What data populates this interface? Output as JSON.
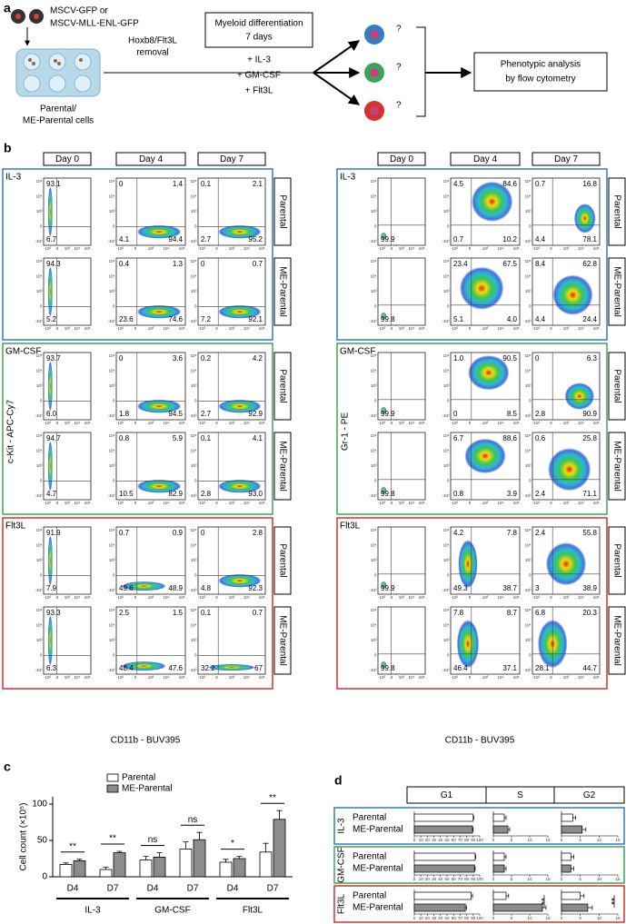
{
  "panel_a": {
    "label": "a",
    "vectors": [
      "MSCV-GFP or",
      "MSCV-MLL-ENL-GFP"
    ],
    "cells": [
      "Parental/",
      "ME-Parental cells"
    ],
    "step": [
      "Hoxb8/Flt3L",
      "removal"
    ],
    "box": [
      "Myeloid differentiation",
      "7 days"
    ],
    "conditions": [
      {
        "text": "+ IL-3",
        "color": "#2f7fc1"
      },
      {
        "text": "+ GM-CSF",
        "color": "#3aa655"
      },
      {
        "text": "+ Flt3L",
        "color": "#d9302c"
      }
    ],
    "outcome": "?",
    "analysis": [
      "Phenotypic analysis",
      "by flow cytometry"
    ]
  },
  "panel_b": {
    "label": "b",
    "days": [
      "Day 0",
      "Day 4",
      "Day 7"
    ],
    "rows": [
      "Parental",
      "ME-Parental"
    ],
    "axis_ticks": [
      "-10³",
      "0",
      "10³",
      "10⁴",
      "10⁵"
    ],
    "x_label": "CD11b - BUV395",
    "blocks": [
      {
        "y_label": "c-Kit - APC-Cy7",
        "conditions": [
          {
            "name": "IL-3",
            "color": "#2f7fc1",
            "plots": [
              [
                [
                  "93.1",
                  "6.7"
                ],
                [
                  "0",
                  "1.4",
                  "4.1",
                  "94.4"
                ],
                [
                  "0.1",
                  "2.1",
                  "2.7",
                  "95.2"
                ]
              ],
              [
                [
                  "94.3",
                  "5.2"
                ],
                [
                  "0.4",
                  "1.3",
                  "23.6",
                  "74.6"
                ],
                [
                  "0",
                  "0.7",
                  "7.2",
                  "92.1"
                ]
              ]
            ]
          },
          {
            "name": "GM-CSF",
            "color": "#3aa655",
            "plots": [
              [
                [
                  "93.7",
                  "6.0"
                ],
                [
                  "0",
                  "3.6",
                  "1.8",
                  "94.5"
                ],
                [
                  "0.2",
                  "4.2",
                  "2.7",
                  "92.9"
                ]
              ],
              [
                [
                  "94.7",
                  "4.7"
                ],
                [
                  "0.8",
                  "5.9",
                  "10.5",
                  "82.9"
                ],
                [
                  "0.1",
                  "4.1",
                  "2.8",
                  "93.0"
                ]
              ]
            ]
          },
          {
            "name": "Flt3L",
            "color": "#d9302c",
            "plots": [
              [
                [
                  "91.9",
                  "7.9"
                ],
                [
                  "0.7",
                  "0.9",
                  "49.6",
                  "48.9"
                ],
                [
                  "0",
                  "2.8",
                  "4.8",
                  "92.3"
                ]
              ],
              [
                [
                  "93.3",
                  "6.3"
                ],
                [
                  "2.5",
                  "1.5",
                  "48.4",
                  "47.6"
                ],
                [
                  "0.1",
                  "0.7",
                  "32.2",
                  "67"
                ]
              ]
            ]
          }
        ]
      },
      {
        "y_label": "Gr-1 - PE",
        "conditions": [
          {
            "name": "IL-3",
            "color": "#2f7fc1",
            "plots": [
              [
                [
                  "99.9"
                ],
                [
                  "4.5",
                  "84.6",
                  "0.7",
                  "10.2"
                ],
                [
                  "0.7",
                  "16.8",
                  "4.4",
                  "78.1"
                ]
              ],
              [
                [
                  "99.8"
                ],
                [
                  "23.4",
                  "67.5",
                  "5.1",
                  "4.0"
                ],
                [
                  "8.4",
                  "62.8",
                  "4.4",
                  "24.4"
                ]
              ]
            ]
          },
          {
            "name": "GM-CSF",
            "color": "#3aa655",
            "plots": [
              [
                [
                  "99.9"
                ],
                [
                  "1.0",
                  "90.5",
                  "0",
                  "8.5"
                ],
                [
                  "0",
                  "6.3",
                  "2.8",
                  "90.9"
                ]
              ],
              [
                [
                  "99.8"
                ],
                [
                  "6.7",
                  "88.6",
                  "0.8",
                  "3.9"
                ],
                [
                  "0.6",
                  "25.8",
                  "2.4",
                  "71.1"
                ]
              ]
            ]
          },
          {
            "name": "Flt3L",
            "color": "#d9302c",
            "plots": [
              [
                [
                  "99.9"
                ],
                [
                  "4.2",
                  "7.8",
                  "49.3",
                  "38.7"
                ],
                [
                  "2.4",
                  "55.8",
                  "3",
                  "38.9"
                ]
              ],
              [
                [
                  "99.8"
                ],
                [
                  "7.8",
                  "8.7",
                  "46.4",
                  "37.1"
                ],
                [
                  "6.8",
                  "20.3",
                  "28.1",
                  "44.7"
                ]
              ]
            ]
          }
        ]
      }
    ]
  },
  "chart_data": [
    {
      "type": "bar",
      "panel": "c",
      "y_label": "Cell count (×10⁵)",
      "ylim": [
        0,
        110
      ],
      "yticks": [
        0,
        50,
        100
      ],
      "categories": [
        "D4",
        "D7",
        "D4",
        "D7",
        "D4",
        "D7"
      ],
      "groups": [
        "IL-3",
        "GM-CSF",
        "Flt3L"
      ],
      "series": [
        {
          "name": "Parental",
          "color": "#ffffff",
          "values": [
            17,
            10,
            23,
            38,
            20,
            34
          ],
          "errors": [
            2,
            3,
            5,
            10,
            4,
            12
          ]
        },
        {
          "name": "ME-Parental",
          "color": "#8c8c8c",
          "values": [
            22,
            33,
            27,
            51,
            25,
            79
          ],
          "errors": [
            2,
            2,
            6,
            10,
            3,
            12
          ]
        }
      ],
      "annotations": [
        "**",
        "**",
        "ns",
        "ns",
        "*",
        "**"
      ]
    },
    {
      "type": "hbar",
      "panel": "d",
      "rows": [
        "Parental",
        "ME-Parental"
      ],
      "row_colors": [
        "#ffffff",
        "#8c8c8c"
      ],
      "columns": [
        {
          "name": "G1",
          "xlim": [
            0,
            100
          ],
          "xticks": [
            0,
            10,
            20,
            30,
            40,
            50,
            60,
            70,
            80,
            90,
            100
          ]
        },
        {
          "name": "S",
          "xlim": [
            0,
            15
          ],
          "xticks": [
            0,
            5,
            10,
            15
          ]
        },
        {
          "name": "G2",
          "xlim": [
            0,
            15
          ],
          "xticks": [
            0,
            5,
            10,
            15
          ]
        }
      ],
      "groups": [
        {
          "name": "IL-3",
          "color": "#2f7fc1",
          "values": [
            [
              90,
              3,
              3
            ],
            [
              89,
              4,
              5.5
            ]
          ],
          "errors": [
            [
              1,
              0.5,
              0.8
            ],
            [
              1,
              0.5,
              1
            ]
          ]
        },
        {
          "name": "GM-CSF",
          "color": "#3aa655",
          "values": [
            [
              93,
              3,
              2.5
            ],
            [
              92,
              3,
              2.5
            ]
          ],
          "errors": [
            [
              1,
              0.5,
              0.8
            ],
            [
              1,
              0.5,
              0.8
            ]
          ]
        },
        {
          "name": "Flt3L",
          "color": "#d9302c",
          "values": [
            [
              87,
              3.5,
              5
            ],
            [
              78,
              13.5,
              7
            ]
          ],
          "errors": [
            [
              2,
              0.7,
              1
            ],
            [
              2,
              1,
              1.2
            ]
          ],
          "significance": [
            {
              "column": 1,
              "text": "**"
            },
            {
              "column": 2,
              "text": "**"
            }
          ]
        }
      ]
    }
  ]
}
